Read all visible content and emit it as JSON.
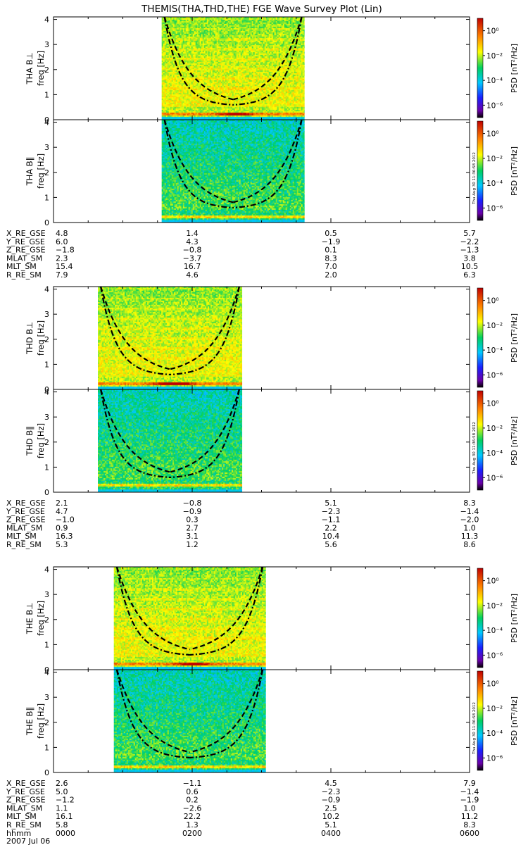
{
  "title": "THEMIS(THA,THD,THE) FGE Wave Survey Plot (Lin)",
  "date_label": "2007 Jul 06",
  "stamp": "Thu Aug 30 11:36:58 2012",
  "freq_ylabel": "freq [Hz]",
  "freq_ticks": [
    "0",
    "1",
    "2",
    "3",
    "4"
  ],
  "colorbar": {
    "label": "PSD [nT²/Hz]",
    "ticks": [
      "10⁰",
      "10⁻²",
      "10⁻⁴",
      "10⁻⁶"
    ],
    "log_range": [
      -7,
      1
    ]
  },
  "chart_data": {
    "type": "heatmap",
    "x_range_hhmm": [
      "0000",
      "0600"
    ],
    "freq_range_hz": [
      0,
      4.1
    ],
    "x_time_labels": [
      "0000",
      "0200",
      "0400",
      "0600"
    ],
    "ephemeris_row_labels": [
      "X_RE_GSE",
      "Y_RE_GSE",
      "Z_RE_GSE",
      "MLAT_SM",
      "MLT_SM",
      "R_RE_SM"
    ],
    "time_row_label": "hhmm",
    "probes": [
      {
        "name": "THA",
        "panels": [
          {
            "id": "tha-bperp",
            "ylabel": "THA B⊥",
            "bright_band_hz": 0.25,
            "bright_strength": 1.0
          },
          {
            "id": "tha-bpar",
            "ylabel": "THA B∥",
            "bright_band_hz": 0.25,
            "bright_strength": 0.0
          }
        ],
        "data_coverage_hours": [
          1.56,
          3.62
        ],
        "ephemeris": [
          [
            "4.8",
            "1.4",
            "0.5",
            "5.7"
          ],
          [
            "6.0",
            "4.3",
            "−1.9",
            "−2.2"
          ],
          [
            "−1.8",
            "−0.8",
            "0.1",
            "−1.3"
          ],
          [
            "2.3",
            "−3.7",
            "8.3",
            "3.8"
          ],
          [
            "15.4",
            "16.7",
            "7.0",
            "10.5"
          ],
          [
            "7.9",
            "4.6",
            "2.0",
            "6.3"
          ]
        ]
      },
      {
        "name": "THD",
        "panels": [
          {
            "id": "thd-bperp",
            "ylabel": "THD B⊥",
            "bright_band_hz": 0.25,
            "bright_strength": 1.6
          },
          {
            "id": "thd-bpar",
            "ylabel": "THD B∥",
            "bright_band_hz": 0.3,
            "bright_strength": 0.0
          }
        ],
        "data_coverage_hours": [
          0.64,
          2.72
        ],
        "ephemeris": [
          [
            "2.1",
            "−0.8",
            "5.1",
            "8.3"
          ],
          [
            "4.7",
            "−0.9",
            "−2.3",
            "−1.4"
          ],
          [
            "−1.0",
            "0.3",
            "−1.1",
            "−2.0"
          ],
          [
            "0.9",
            "2.7",
            "2.2",
            "1.0"
          ],
          [
            "16.3",
            "3.1",
            "10.4",
            "11.3"
          ],
          [
            "5.3",
            "1.2",
            "5.6",
            "8.6"
          ]
        ]
      },
      {
        "name": "THE",
        "panels": [
          {
            "id": "the-bperp",
            "ylabel": "THE B⊥",
            "bright_band_hz": 0.25,
            "bright_strength": 1.0
          },
          {
            "id": "the-bpar",
            "ylabel": "THE B∥",
            "bright_band_hz": 0.25,
            "bright_strength": 0.0
          }
        ],
        "data_coverage_hours": [
          0.87,
          3.06
        ],
        "ephemeris": [
          [
            "2.6",
            "−1.1",
            "4.5",
            "7.9"
          ],
          [
            "5.0",
            "0.6",
            "−2.3",
            "−1.4"
          ],
          [
            "−1.2",
            "0.2",
            "−0.9",
            "−1.9"
          ],
          [
            "1.1",
            "−2.6",
            "2.5",
            "1.0"
          ],
          [
            "16.1",
            "22.2",
            "10.2",
            "11.2"
          ],
          [
            "5.8",
            "1.3",
            "5.1",
            "8.3"
          ]
        ]
      }
    ]
  }
}
